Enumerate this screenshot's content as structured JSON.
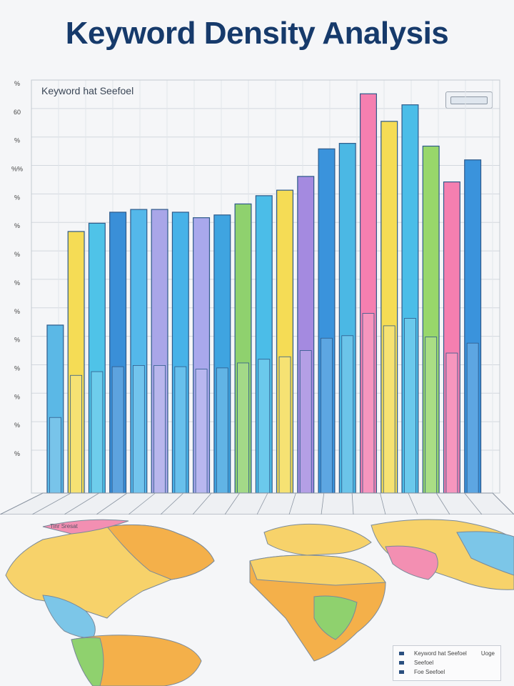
{
  "title": "Keyword Density Analysis",
  "chart_data": {
    "type": "bar",
    "title": "Keyword Density Analysis",
    "subtitle": "Keyword hat Seefoel",
    "ylabel": "",
    "xlabel": "",
    "grid": true,
    "ylim": [
      0,
      15
    ],
    "y_ticks": [
      "%",
      "60",
      "%",
      "%%",
      "%",
      "%",
      "%",
      "%",
      "%",
      "%",
      "%",
      "%",
      "%",
      "%"
    ],
    "legend_position": "bottom-right",
    "legend_rows": [
      "Keyword hat Seefoel",
      "Seefoel",
      "Foe Seefoel"
    ],
    "legend_aux": "Uoge",
    "values": [
      6.1,
      9.5,
      9.8,
      10.2,
      10.3,
      10.3,
      10.2,
      10.0,
      10.1,
      10.5,
      10.8,
      11.0,
      11.5,
      12.5,
      12.7,
      14.5,
      13.5,
      14.1,
      12.6,
      11.3,
      12.1
    ],
    "bar_colors": [
      "#5bb8e6",
      "#f5dc55",
      "#4fc3e8",
      "#3a8fd8",
      "#54b8ea",
      "#a9a6e8",
      "#47b2e8",
      "#a9a8ec",
      "#3fa4e0",
      "#8fd16e",
      "#4bbde8",
      "#f5dc55",
      "#a48ae0",
      "#3a93dc",
      "#4bb8e4",
      "#f57fb0",
      "#f5dc55",
      "#4bbde8",
      "#98d76b",
      "#f57fb0",
      "#3a93dc"
    ]
  },
  "map": {
    "region_colors": [
      "#f4b04a",
      "#f7d26a",
      "#7cc6e8",
      "#8fd16e",
      "#f38fb2"
    ],
    "map_labels": "Tinr Sresat"
  }
}
